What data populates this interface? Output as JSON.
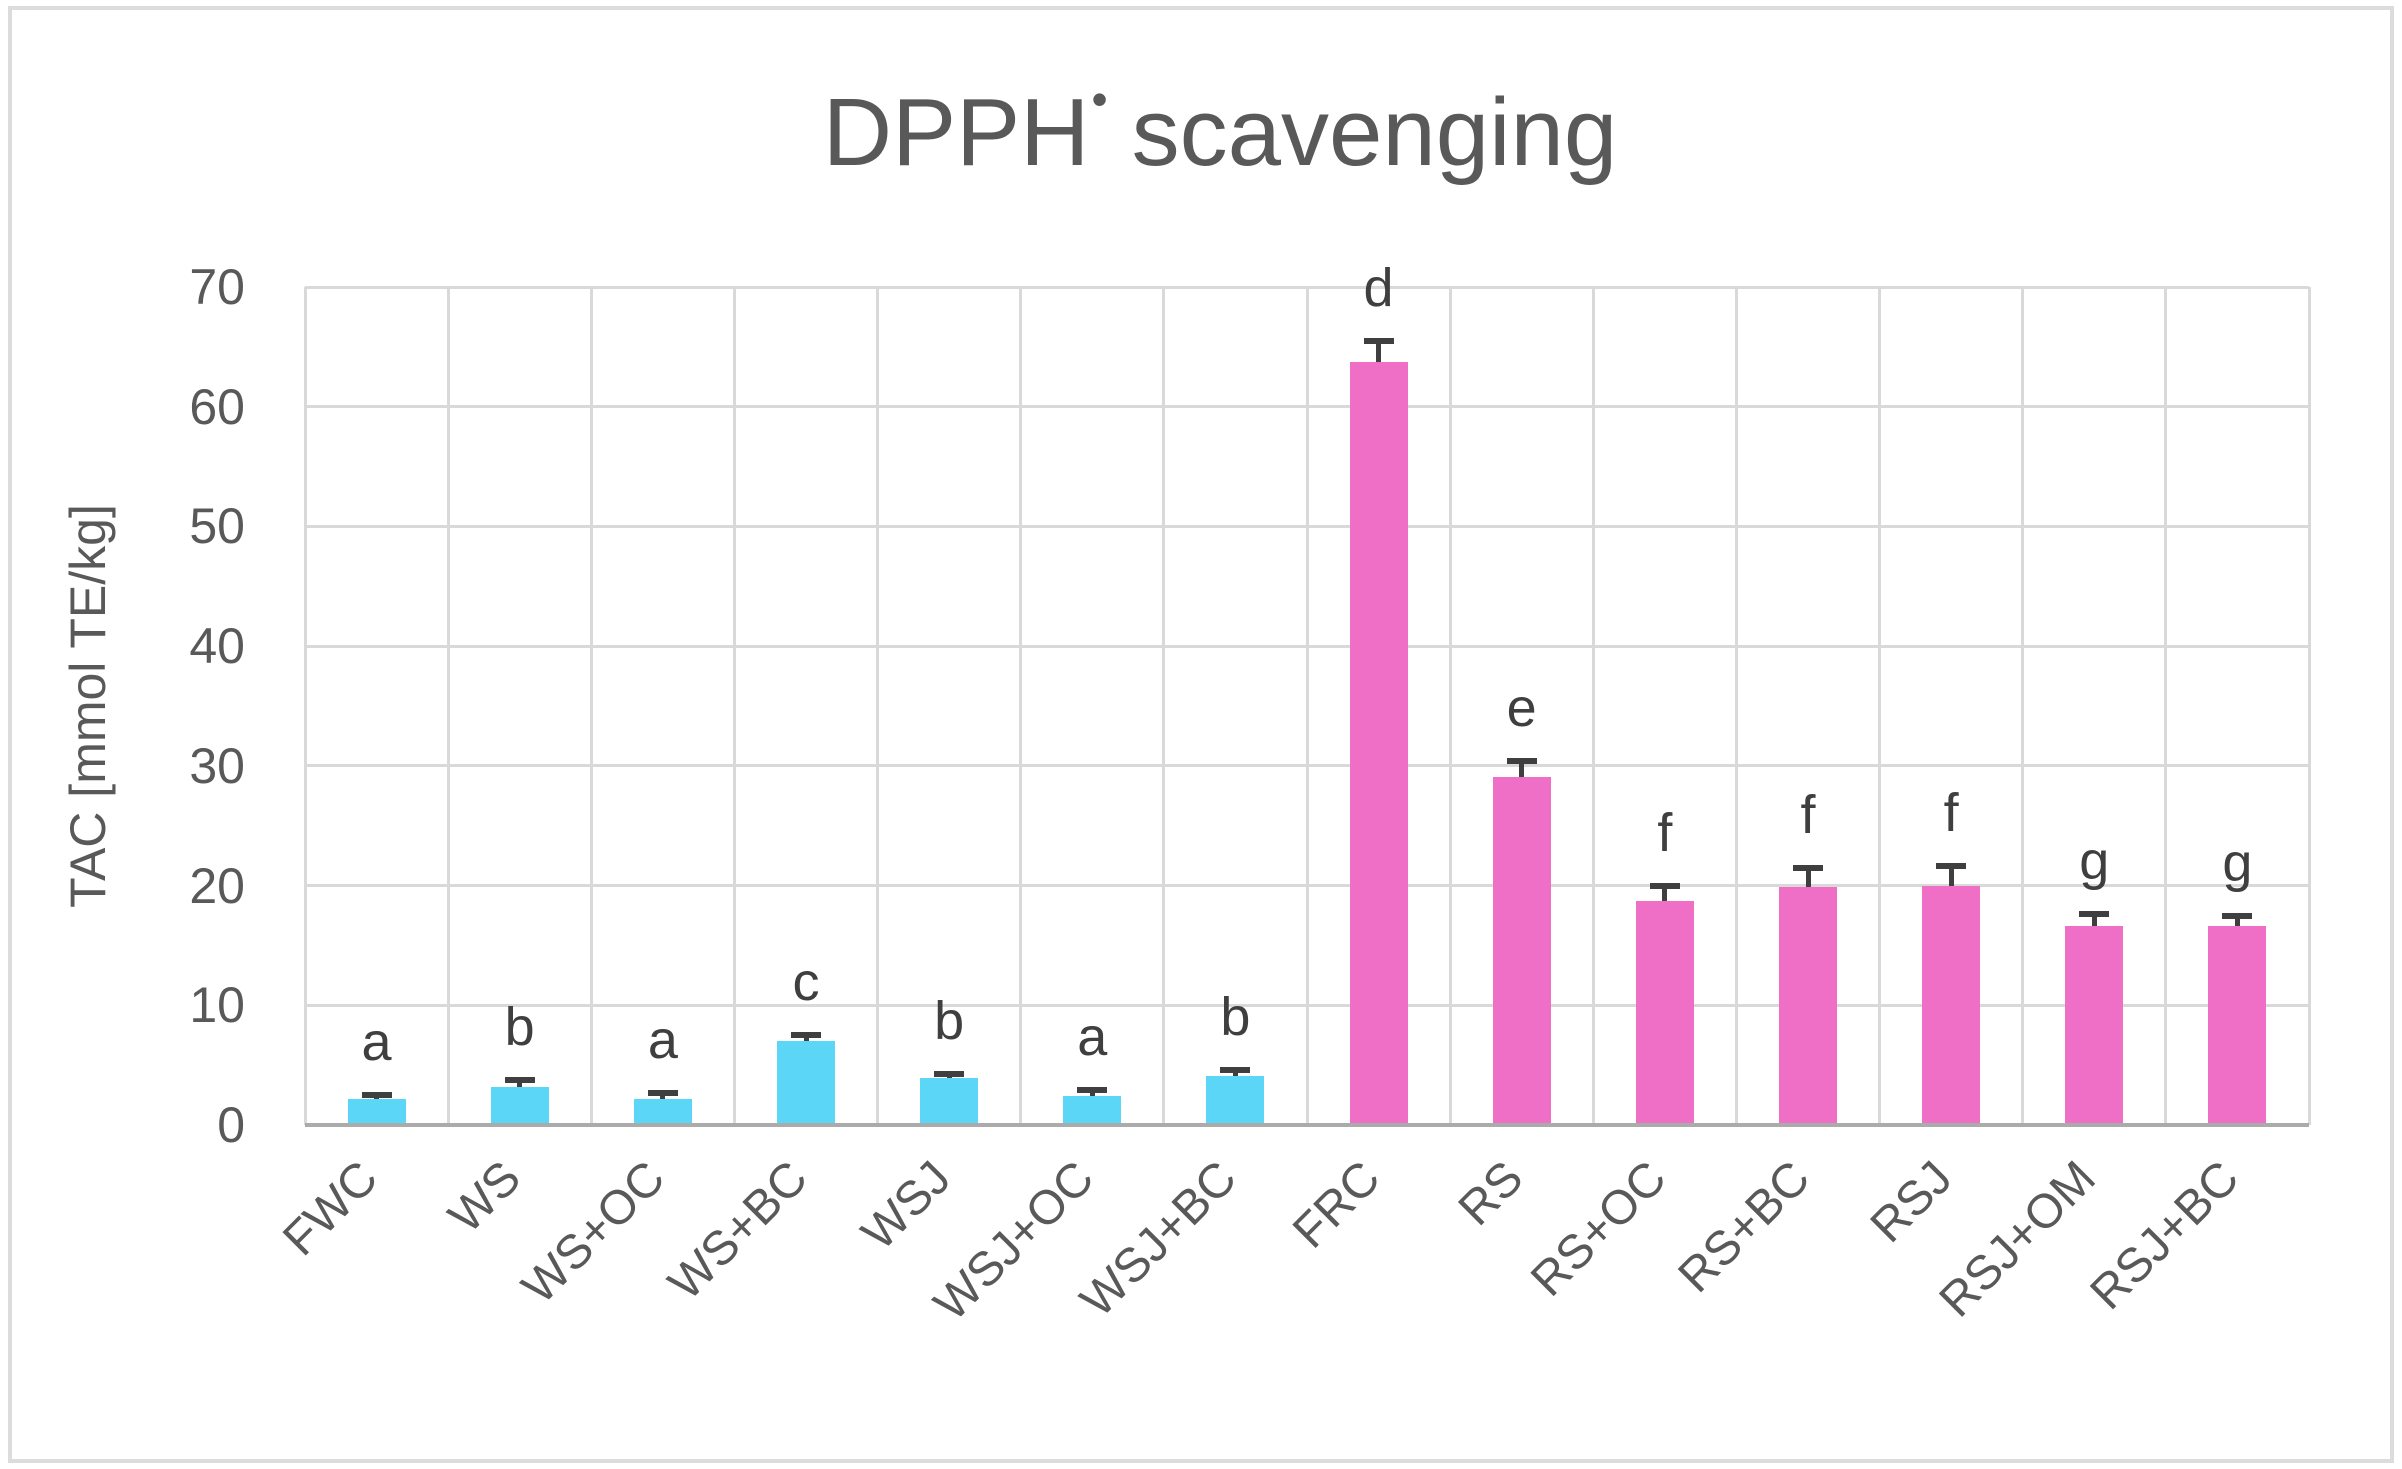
{
  "title": {
    "prefix": "DPPH",
    "radical_dot": "•",
    "suffix": "scavenging"
  },
  "chart_data": {
    "type": "bar",
    "title": "DPPH• scavenging",
    "xlabel": "",
    "ylabel": "TAC [mmol TE/kg]",
    "ylim": [
      0,
      70
    ],
    "yticks": [
      0,
      10,
      20,
      30,
      40,
      50,
      60,
      70
    ],
    "grid": true,
    "legend": "none",
    "categories": [
      "FWC",
      "WS",
      "WS+OC",
      "WS+BC",
      "WSJ",
      "WSJ+OC",
      "WSJ+BC",
      "FRC",
      "RS",
      "RS+OC",
      "RS+BC",
      "RSJ",
      "RSJ+OM",
      "RSJ+BC"
    ],
    "values": [
      2.2,
      3.2,
      2.2,
      7.0,
      3.9,
      2.4,
      4.1,
      63.7,
      29.1,
      18.7,
      19.9,
      20.0,
      16.6,
      16.6
    ],
    "errors": [
      0.3,
      0.6,
      0.5,
      0.5,
      0.4,
      0.5,
      0.5,
      1.8,
      1.3,
      1.3,
      1.6,
      1.6,
      1.0,
      0.9
    ],
    "significance_letters": [
      "a",
      "b",
      "a",
      "c",
      "b",
      "a",
      "b",
      "d",
      "e",
      "f",
      "f",
      "f",
      "g",
      "g"
    ],
    "bar_colors": [
      "#5cd6f7",
      "#5cd6f7",
      "#5cd6f7",
      "#5cd6f7",
      "#5cd6f7",
      "#5cd6f7",
      "#5cd6f7",
      "#ef6fc6",
      "#ef6fc6",
      "#ef6fc6",
      "#ef6fc6",
      "#ef6fc6",
      "#ef6fc6",
      "#ef6fc6"
    ],
    "colors": {
      "error_bar": "#3f3f3f",
      "letter_text": "#3f3f3f",
      "gridline": "#d9d9d9",
      "axis_line": "#ababab",
      "tick_text": "#595959",
      "title_text": "#595959",
      "frame_border": "#dcdcdc",
      "background": "#ffffff"
    }
  }
}
